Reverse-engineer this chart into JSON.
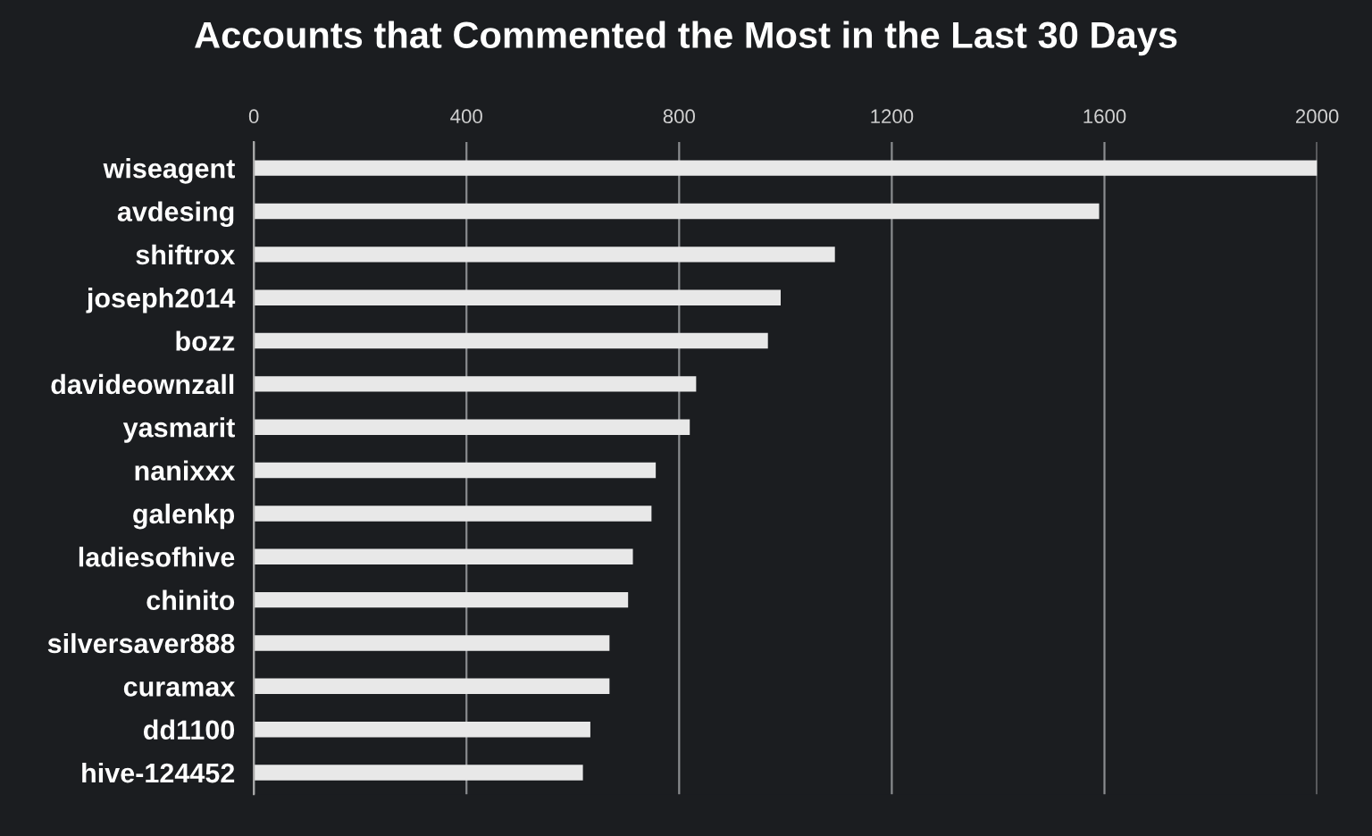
{
  "chart_data": {
    "type": "bar",
    "orientation": "horizontal",
    "title": "Accounts that Commented the Most in the Last 30 Days",
    "categories": [
      "wiseagent",
      "avdesing",
      "shiftrox",
      "joseph2014",
      "bozz",
      "davideownzall",
      "yasmarit",
      "nanixxx",
      "galenkp",
      "ladiesofhive",
      "chinito",
      "silversaver888",
      "curamax",
      "dd1100",
      "hive-124452"
    ],
    "values": [
      2000,
      1590,
      1093,
      991,
      967,
      832,
      820,
      756,
      748,
      713,
      704,
      669,
      669,
      633,
      619
    ],
    "color": "#e8e8e8",
    "xlim": [
      0,
      2000
    ],
    "xticks": [
      0,
      400,
      800,
      1200,
      1600,
      2000
    ],
    "grid": "x",
    "legend": false
  }
}
